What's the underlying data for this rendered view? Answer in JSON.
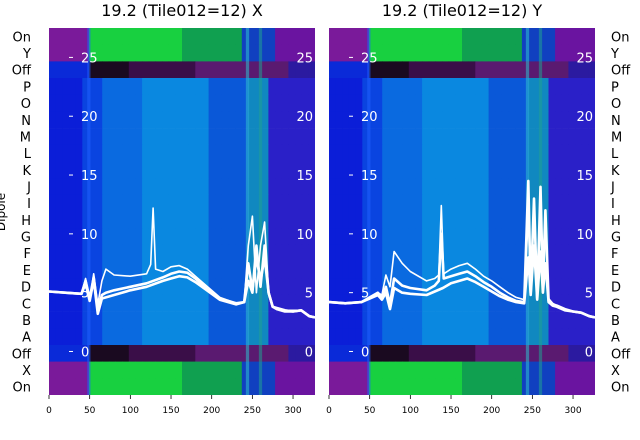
{
  "chart_data": [
    {
      "type": "heatmap",
      "title": "19.2 (Tile012=12) X",
      "ylabel": "Dipole",
      "row_labels": [
        "On",
        "Y",
        "Off",
        "P",
        "O",
        "N",
        "M",
        "L",
        "K",
        "J",
        "I",
        "H",
        "G",
        "F",
        "E",
        "D",
        "C",
        "B",
        "A",
        "Off",
        "X",
        "On"
      ],
      "x_ticks": [
        0,
        50,
        100,
        150,
        200,
        250,
        300
      ],
      "xlim": [
        0,
        327
      ],
      "overlay_ticks": [
        0,
        5,
        10,
        15,
        20,
        25
      ],
      "overlay_ylim": [
        -3.7,
        27.5
      ],
      "overlay_series": [
        {
          "x": [
            0,
            20,
            40,
            45,
            50,
            55,
            60,
            65,
            70,
            80,
            100,
            120,
            140,
            150,
            160,
            170,
            180,
            190,
            200,
            210,
            230,
            240,
            245,
            250,
            255,
            260,
            265,
            270,
            275,
            280,
            290,
            300,
            310,
            320,
            327
          ],
          "y": [
            5.1,
            5.0,
            4.9,
            6.0,
            4.5,
            6.3,
            3.5,
            4.8,
            5.0,
            5.2,
            5.5,
            5.8,
            6.3,
            6.6,
            6.8,
            6.7,
            6.2,
            5.6,
            5.0,
            4.5,
            4.1,
            4.2,
            6.0,
            5.0,
            9.0,
            5.5,
            9.0,
            5.0,
            3.8,
            3.7,
            3.5,
            3.4,
            3.5,
            3.0,
            2.9
          ]
        },
        {
          "x": [
            0,
            20,
            40,
            45,
            50,
            55,
            60,
            65,
            70,
            80,
            100,
            120,
            125,
            128,
            131,
            140,
            150,
            160,
            170,
            180,
            190,
            200,
            210,
            230,
            240,
            245,
            250,
            255,
            260,
            265,
            270,
            275,
            280,
            290,
            300,
            310,
            320,
            327
          ],
          "y": [
            5.1,
            5.0,
            4.9,
            6.2,
            4.4,
            6.6,
            4.0,
            6.0,
            7.0,
            6.5,
            6.4,
            6.6,
            7.4,
            12.2,
            7.0,
            6.8,
            7.2,
            7.3,
            7.0,
            6.4,
            5.8,
            5.2,
            4.6,
            4.1,
            4.2,
            9.0,
            11.5,
            5.0,
            9.0,
            11.0,
            5.0,
            3.8,
            3.7,
            3.5,
            3.5,
            3.5,
            3.0,
            2.9
          ]
        },
        {
          "x": [
            0,
            20,
            40,
            45,
            50,
            55,
            60,
            65,
            70,
            80,
            100,
            120,
            140,
            150,
            160,
            170,
            180,
            190,
            200,
            210,
            230,
            240,
            245,
            250,
            255,
            260,
            265,
            270,
            275,
            280,
            290,
            300,
            310,
            320,
            327
          ],
          "y": [
            5.1,
            5.0,
            4.9,
            5.8,
            4.3,
            6.1,
            3.2,
            4.5,
            4.6,
            4.8,
            5.2,
            5.5,
            6.0,
            6.2,
            6.4,
            6.3,
            5.9,
            5.4,
            4.9,
            4.4,
            4.0,
            4.2,
            7.5,
            5.2,
            8.0,
            6.0,
            8.0,
            5.0,
            3.8,
            3.6,
            3.4,
            3.4,
            3.5,
            3.0,
            2.9
          ]
        }
      ]
    },
    {
      "type": "heatmap",
      "title": "19.2 (Tile012=12) Y",
      "row_labels": [
        "On",
        "Y",
        "Off",
        "P",
        "O",
        "N",
        "M",
        "L",
        "K",
        "J",
        "I",
        "H",
        "G",
        "F",
        "E",
        "D",
        "C",
        "B",
        "A",
        "Off",
        "X",
        "On"
      ],
      "x_ticks": [
        0,
        50,
        100,
        150,
        200,
        250,
        300
      ],
      "xlim": [
        0,
        327
      ],
      "overlay_ticks": [
        0,
        5,
        10,
        15,
        20,
        25
      ],
      "overlay_ylim": [
        -3.7,
        27.5
      ],
      "overlay_series": [
        {
          "x": [
            0,
            20,
            40,
            50,
            60,
            65,
            70,
            75,
            80,
            90,
            100,
            120,
            130,
            135,
            138,
            141,
            150,
            160,
            170,
            180,
            190,
            200,
            210,
            220,
            230,
            240,
            245,
            248,
            252,
            256,
            260,
            263,
            266,
            270,
            275,
            280,
            290,
            300,
            310,
            320,
            327
          ],
          "y": [
            4.2,
            4.1,
            4.2,
            4.6,
            5.0,
            4.6,
            5.5,
            4.0,
            6.2,
            5.6,
            5.4,
            5.2,
            5.6,
            6.0,
            10.0,
            6.2,
            6.4,
            6.6,
            6.8,
            6.4,
            5.9,
            5.5,
            5.0,
            4.6,
            4.3,
            4.2,
            14.5,
            5.0,
            13.0,
            4.5,
            14.0,
            5.5,
            12.0,
            4.3,
            4.0,
            3.9,
            3.6,
            3.4,
            3.3,
            3.0,
            2.9
          ]
        },
        {
          "x": [
            0,
            20,
            40,
            50,
            60,
            65,
            70,
            75,
            80,
            90,
            100,
            120,
            130,
            135,
            138,
            141,
            150,
            160,
            170,
            180,
            190,
            200,
            210,
            220,
            230,
            240,
            245,
            248,
            252,
            256,
            260,
            263,
            266,
            270,
            275,
            280,
            290,
            300,
            310,
            320,
            327
          ],
          "y": [
            4.2,
            4.1,
            4.2,
            4.6,
            5.0,
            4.8,
            6.5,
            5.5,
            8.5,
            7.5,
            6.8,
            6.0,
            6.2,
            6.5,
            12.4,
            6.6,
            7.0,
            7.3,
            7.5,
            7.0,
            6.4,
            6.0,
            5.5,
            5.0,
            4.6,
            4.4,
            11.5,
            5.2,
            12.0,
            5.0,
            11.0,
            6.0,
            10.5,
            4.5,
            4.1,
            3.9,
            3.6,
            3.4,
            3.3,
            3.0,
            2.9
          ]
        },
        {
          "x": [
            0,
            20,
            40,
            50,
            60,
            65,
            70,
            75,
            80,
            90,
            100,
            120,
            140,
            150,
            160,
            170,
            180,
            190,
            200,
            210,
            220,
            230,
            240,
            245,
            248,
            252,
            256,
            260,
            263,
            266,
            270,
            275,
            280,
            290,
            300,
            310,
            320,
            327
          ],
          "y": [
            4.2,
            4.1,
            4.2,
            4.5,
            4.8,
            4.4,
            5.0,
            3.6,
            5.4,
            5.0,
            4.9,
            4.8,
            5.4,
            5.8,
            6.0,
            6.2,
            5.9,
            5.5,
            5.1,
            4.7,
            4.4,
            4.2,
            4.1,
            8.0,
            4.8,
            9.0,
            4.4,
            8.5,
            5.0,
            7.5,
            4.2,
            3.9,
            3.8,
            3.5,
            3.4,
            3.3,
            3.0,
            2.9
          ]
        }
      ]
    }
  ]
}
